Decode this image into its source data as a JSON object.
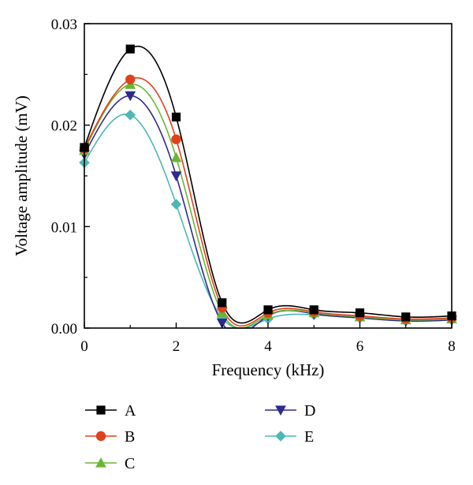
{
  "chart_data": {
    "type": "line",
    "title": "",
    "xlabel": "Frequency (kHz)",
    "ylabel": "Voltage amplitude (mV)",
    "xlim": [
      0,
      8
    ],
    "ylim": [
      0,
      0.03
    ],
    "x_ticks": [
      0,
      2,
      4,
      6,
      8
    ],
    "x_tick_labels": [
      "0",
      "2",
      "4",
      "6",
      "8"
    ],
    "y_ticks": [
      0,
      0.01,
      0.02,
      0.03
    ],
    "y_tick_labels": [
      "0.00",
      "0.01",
      "0.02",
      "0.03"
    ],
    "grid": false,
    "legend_position": "bottom",
    "x": [
      0,
      1,
      2,
      3,
      4,
      5,
      6,
      7,
      8
    ],
    "series": [
      {
        "name": "A",
        "marker": "square",
        "color": "#000000",
        "values": [
          0.0178,
          0.0275,
          0.0208,
          0.0025,
          0.0018,
          0.0018,
          0.0015,
          0.0011,
          0.0012
        ]
      },
      {
        "name": "B",
        "marker": "circle",
        "color": "#e0421b",
        "values": [
          0.0177,
          0.0245,
          0.0186,
          0.002,
          0.0015,
          0.0016,
          0.0012,
          0.0009,
          0.001
        ]
      },
      {
        "name": "C",
        "marker": "triangle-up",
        "color": "#6ab634",
        "values": [
          0.0175,
          0.024,
          0.0168,
          0.0015,
          0.0013,
          0.0015,
          0.0011,
          0.0008,
          0.0009
        ]
      },
      {
        "name": "D",
        "marker": "triangle-down",
        "color": "#2e2a8e",
        "values": [
          0.0171,
          0.0229,
          0.015,
          0.0005,
          0.0012,
          0.0014,
          0.001,
          0.0007,
          0.0008
        ]
      },
      {
        "name": "E",
        "marker": "diamond",
        "color": "#4cb8b4",
        "values": [
          0.0163,
          0.021,
          0.0122,
          0.001,
          0.0009,
          0.0013,
          0.001,
          0.0007,
          0.0008
        ]
      }
    ]
  }
}
